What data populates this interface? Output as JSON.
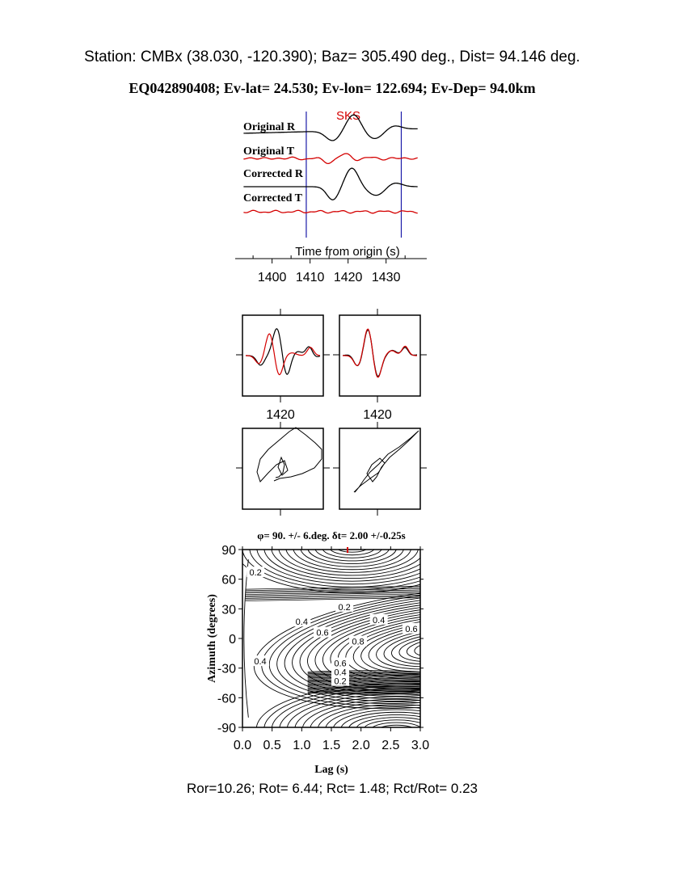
{
  "header": {
    "station_line": "Station: CMBx (38.030, -120.390); Baz=  305.490 deg., Dist=   94.146 deg.",
    "event_line": "EQ042890408; Ev-lat=  24.530; Ev-lon= 122.694; Ev-Dep= 94.0km"
  },
  "colors": {
    "radial": "#000000",
    "transverse": "#d40000",
    "window_marker": "#1a1aa8",
    "phase_label": "#d40000"
  },
  "chart_data": [
    {
      "type": "line",
      "id": "seismograms",
      "phase_label": "SKS",
      "xlabel": "Time from origin (s)",
      "xlim": [
        1392,
        1439
      ],
      "x_ticks": [
        1400,
        1410,
        1420,
        1430
      ],
      "window": [
        1409,
        1434
      ],
      "traces": [
        {
          "name": "Original R",
          "component": "R"
        },
        {
          "name": "Original T",
          "component": "T"
        },
        {
          "name": "Corrected R",
          "component": "R"
        },
        {
          "name": "Corrected T",
          "component": "T"
        }
      ]
    },
    {
      "type": "line",
      "id": "waveform-overlay",
      "panels": [
        {
          "name": "original",
          "x_tick_label": "1420"
        },
        {
          "name": "corrected",
          "x_tick_label": "1420"
        }
      ]
    },
    {
      "type": "scatter",
      "id": "particle-motion",
      "panels": [
        {
          "name": "original"
        },
        {
          "name": "corrected"
        }
      ]
    },
    {
      "type": "heatmap",
      "id": "misfit-grid",
      "title": "φ= 90. +/- 6.deg. δt= 2.00 +/-0.25s",
      "xlabel": "Lag (s)",
      "ylabel": "Azimuth (degrees)",
      "xlim": [
        0,
        3
      ],
      "ylim": [
        -90,
        90
      ],
      "x_ticks": [
        "0.0",
        "0.5",
        "1.0",
        "1.5",
        "2.0",
        "2.5",
        "3.0"
      ],
      "y_ticks": [
        "-90",
        "-60",
        "-30",
        "0",
        "30",
        "60",
        "90"
      ],
      "best_fit": {
        "phi_deg": 90,
        "phi_err_deg": 6,
        "dt_s": 2.0,
        "dt_err_s": 0.25
      },
      "contour_labels": [
        "0.2",
        "0.2",
        "0.4",
        "0.4",
        "0.6",
        "0.6",
        "0.8",
        "0.4",
        "0.6",
        "0.4",
        "0.2"
      ]
    }
  ],
  "footer": {
    "ratio_line": "Ror=10.26; Rot= 6.44; Rct= 1.48; Rct/Rot= 0.23"
  }
}
